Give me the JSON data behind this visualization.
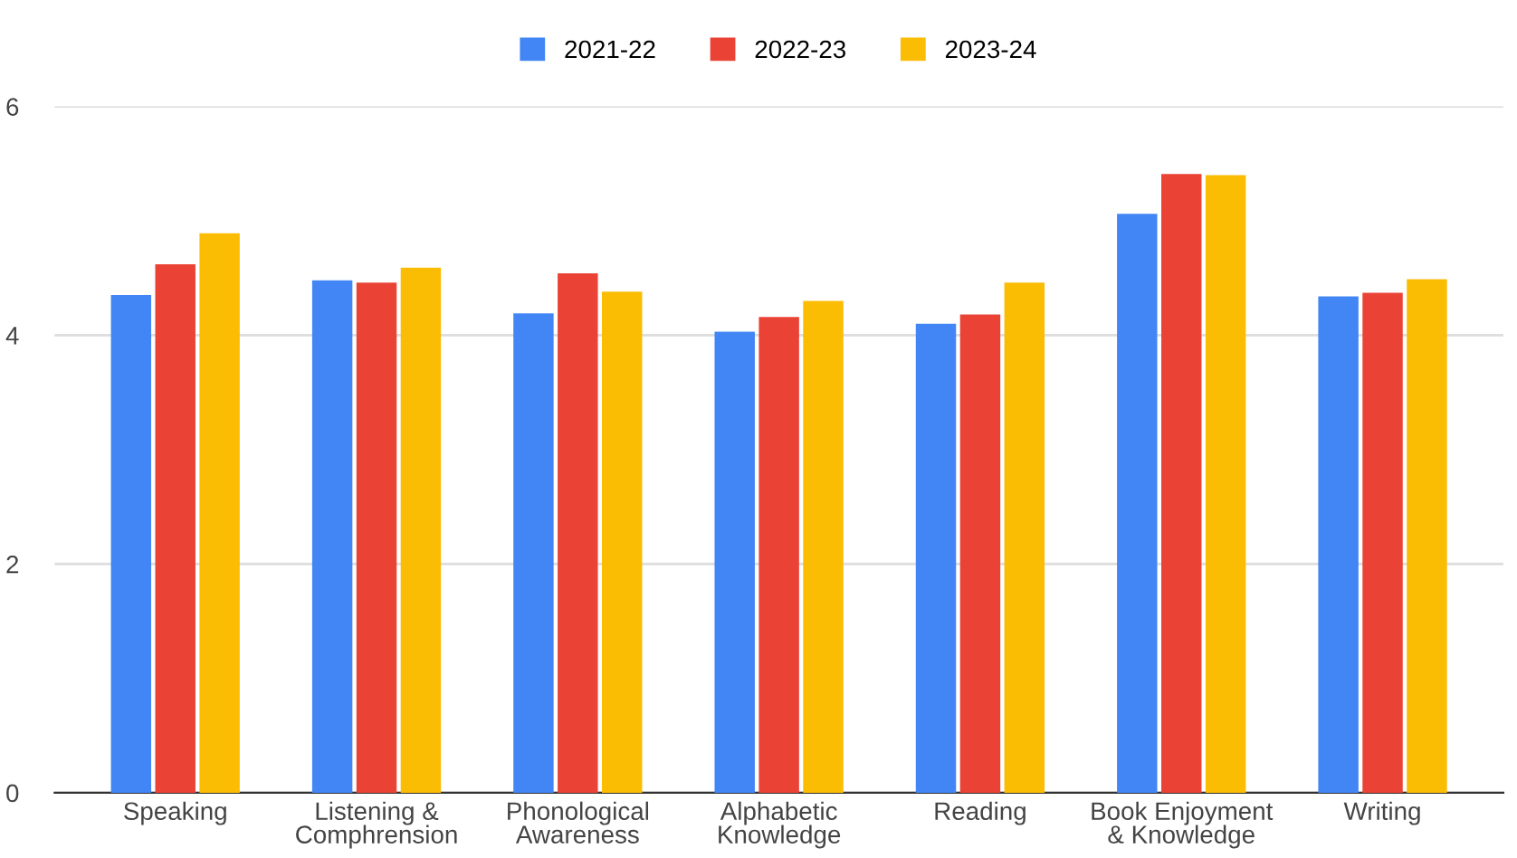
{
  "chart_data": {
    "type": "bar",
    "categories": [
      "Speaking",
      "Listening &\nComphrension",
      "Phonological\nAwareness",
      "Alphabetic\nKnowledge",
      "Reading",
      "Book Enjoyment\n& Knowledge",
      "Writing"
    ],
    "series": [
      {
        "name": "2021-22",
        "color": "#4285f4",
        "values": [
          4.35,
          4.48,
          4.19,
          4.03,
          4.1,
          5.06,
          4.34
        ]
      },
      {
        "name": "2022-23",
        "color": "#ea4335",
        "values": [
          4.62,
          4.46,
          4.54,
          4.16,
          4.18,
          5.41,
          4.37
        ]
      },
      {
        "name": "2023-24",
        "color": "#fbbc04",
        "values": [
          4.89,
          4.59,
          4.38,
          4.3,
          4.46,
          5.4,
          4.49
        ]
      }
    ],
    "ylim": [
      0,
      6
    ],
    "yticks": [
      0,
      2,
      4,
      6
    ],
    "grid": "y",
    "legend": "top"
  }
}
